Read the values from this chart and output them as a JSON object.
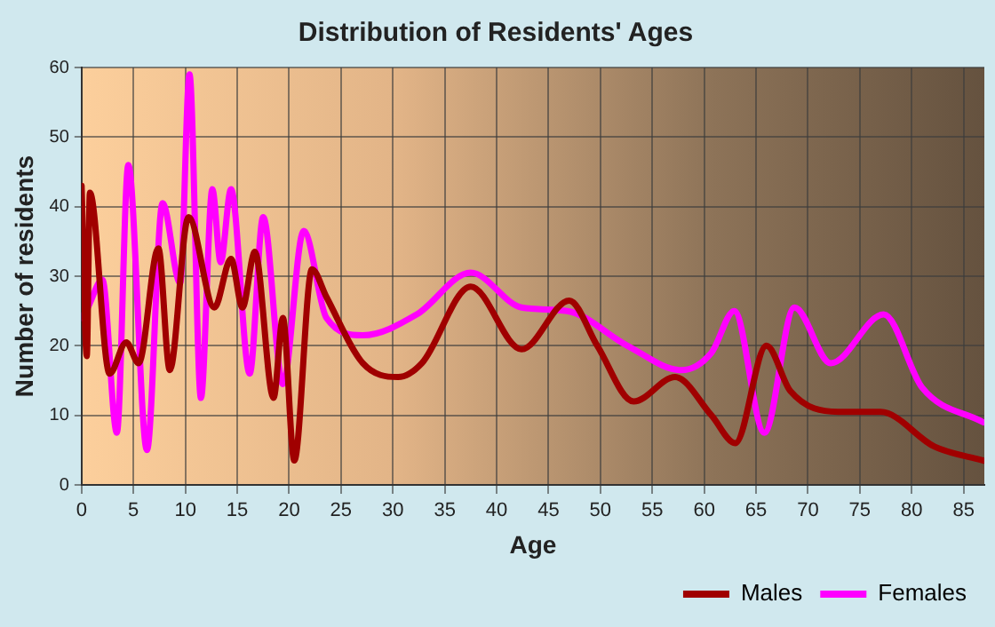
{
  "chart_data": {
    "type": "line",
    "title": "Distribution of Residents' Ages",
    "xlabel": "Age",
    "ylabel": "Number of residents",
    "xlim": [
      0,
      87
    ],
    "xticks": [
      0,
      5,
      10,
      15,
      20,
      25,
      30,
      35,
      40,
      45,
      50,
      55,
      60,
      65,
      70,
      75,
      80,
      85
    ],
    "ylim": [
      0,
      60
    ],
    "yticks": [
      0,
      10,
      20,
      30,
      40,
      50,
      60
    ],
    "grid": true,
    "legend": "bottom",
    "marker": "none",
    "line_style": "solid",
    "series": [
      {
        "name": "Males",
        "color": "#a00000",
        "x": [
          0,
          0.5,
          0.8,
          2.7,
          4.3,
          5.5,
          7.4,
          8.5,
          10.3,
          12.8,
          14.4,
          15.5,
          16.7,
          18.5,
          19.4,
          20.5,
          22.2,
          23.6,
          27.1,
          30.5,
          32.8,
          37.5,
          42.4,
          47,
          49.7,
          53.2,
          57.2,
          60.7,
          63,
          66,
          68.3,
          72.9,
          77,
          82.2,
          86.9
        ],
        "values": [
          43,
          18.5,
          42,
          16,
          20.5,
          17.5,
          34,
          16.5,
          38.5,
          25.5,
          32.5,
          25.5,
          33.5,
          12.5,
          24,
          3.5,
          31,
          27,
          17.5,
          15.5,
          17.5,
          28.5,
          19.5,
          26.5,
          20,
          12,
          15.5,
          10,
          6,
          20,
          13.5,
          10.5,
          10.5,
          5.5,
          3.5
        ]
      },
      {
        "name": "Females",
        "color": "#ff00ff",
        "x": [
          0,
          0.6,
          2,
          3.4,
          4.5,
          6.3,
          7.8,
          9.5,
          10.4,
          11.5,
          12.6,
          13.4,
          14.4,
          16.2,
          17.5,
          19.4,
          21.4,
          23.6,
          27.1,
          32.3,
          37.5,
          42.4,
          46.8,
          52.6,
          57.8,
          60.7,
          62.9,
          65.8,
          68.7,
          72.2,
          77.3,
          81,
          86.9
        ],
        "values": [
          24,
          25.5,
          29.5,
          7.5,
          46,
          5,
          40.5,
          29,
          59,
          12.5,
          42.5,
          32,
          42.5,
          16,
          38.5,
          14.5,
          36.5,
          24,
          21.5,
          24.5,
          30.5,
          25.5,
          25,
          20,
          16.5,
          19,
          25,
          7.5,
          25.5,
          17.5,
          24.5,
          14,
          9
        ]
      }
    ]
  }
}
